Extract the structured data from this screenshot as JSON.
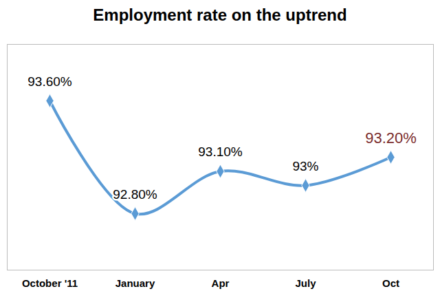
{
  "chart_data": {
    "type": "line",
    "title": "Employment rate on the uptrend",
    "categories": [
      "October '11",
      "January",
      "Apr",
      "July",
      "Oct"
    ],
    "values": [
      93.6,
      92.8,
      93.1,
      93,
      93.2
    ],
    "value_labels": [
      "93.60%",
      "92.80%",
      "93.10%",
      "93%",
      "93.20%"
    ],
    "data_labels": true,
    "color": "#5b9bd5",
    "marker": "diamond",
    "ylim": [
      92.4,
      94.0
    ],
    "yticks": [],
    "tick_labels": "x",
    "grid": false
  }
}
